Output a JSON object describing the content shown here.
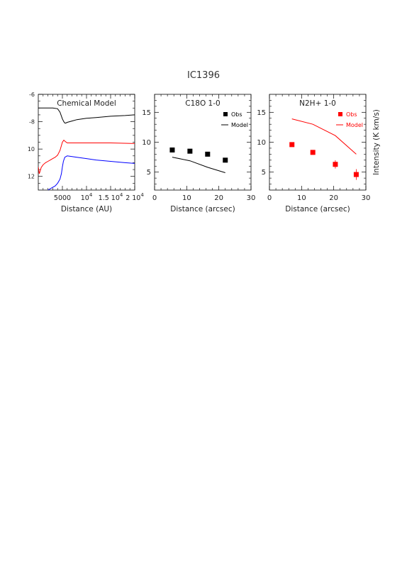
{
  "figure_title": "IC1396",
  "colors": {
    "black": "#000000",
    "red": "#ff0000",
    "blue": "#0000ff"
  },
  "chart_data": [
    {
      "type": "line",
      "title": "Chemical Model",
      "xlabel": "Distance (AU)",
      "ylabel": "",
      "xlim": [
        0,
        20000
      ],
      "ylim": [
        13,
        6
      ],
      "y_inverted": true,
      "y_ticks": [
        {
          "value": 6,
          "label": "-6"
        },
        {
          "value": 8,
          "label": "-8"
        },
        {
          "value": 10,
          "label": "10"
        },
        {
          "value": 12,
          "label": "12"
        }
      ],
      "x_ticks": [
        {
          "value": 5000,
          "label": "5000",
          "sup": ""
        },
        {
          "value": 10000,
          "label": "10",
          "sup": "4"
        },
        {
          "value": 15000,
          "label": "1.5 10",
          "sup": "4"
        },
        {
          "value": 20000,
          "label": "2 10",
          "sup": "4"
        }
      ],
      "series": [
        {
          "color": "#000000",
          "x": [
            0,
            1000,
            2000,
            3000,
            4000,
            4500,
            5000,
            5300,
            5500,
            5700,
            6000,
            7000,
            8000,
            10000,
            12000,
            15000,
            18000,
            20000
          ],
          "y": [
            7.0,
            7.0,
            7.0,
            7.0,
            7.05,
            7.3,
            7.8,
            8.0,
            8.1,
            8.1,
            8.05,
            7.95,
            7.85,
            7.75,
            7.7,
            7.6,
            7.55,
            7.5
          ]
        },
        {
          "color": "#ff0000",
          "x": [
            0,
            200,
            400,
            600,
            1000,
            1500,
            2000,
            2500,
            3000,
            3500,
            4000,
            4500,
            5000,
            5300,
            5600,
            6000,
            7000,
            8000,
            10000,
            15000,
            20000
          ],
          "y": [
            11.3,
            11.8,
            11.6,
            11.35,
            11.15,
            11.0,
            10.9,
            10.8,
            10.7,
            10.6,
            10.45,
            10.1,
            9.5,
            9.35,
            9.45,
            9.55,
            9.55,
            9.55,
            9.55,
            9.55,
            9.6
          ]
        },
        {
          "color": "#0000ff",
          "x": [
            2000,
            2500,
            3000,
            3500,
            4000,
            4500,
            4800,
            5000,
            5200,
            5500,
            6000,
            7000,
            8000,
            10000,
            12000,
            15000,
            18000,
            20000
          ],
          "y": [
            13.0,
            12.9,
            12.8,
            12.7,
            12.5,
            12.2,
            11.8,
            11.3,
            10.9,
            10.6,
            10.5,
            10.55,
            10.6,
            10.7,
            10.8,
            10.9,
            11.0,
            11.05
          ]
        }
      ]
    },
    {
      "type": "scatter",
      "title": "C18O 1-0",
      "xlabel": "Distance (arcsec)",
      "ylabel": "",
      "xlim": [
        0,
        30
      ],
      "ylim": [
        2,
        18
      ],
      "x_ticks": [
        0,
        10,
        20,
        30
      ],
      "y_ticks": [
        5,
        10,
        15
      ],
      "legend": {
        "position": "top-right",
        "obs_label": "Obs",
        "model_label": "Model"
      },
      "series": [
        {
          "name": "Obs",
          "color": "#000000",
          "x": [
            5.5,
            11,
            16.5,
            22
          ],
          "y": [
            8.7,
            8.5,
            8.0,
            7.0
          ],
          "err": [
            0.2,
            0.2,
            0.2,
            0.3
          ]
        },
        {
          "name": "Model",
          "color": "#000000",
          "x": [
            5.5,
            11,
            16.5,
            22
          ],
          "y": [
            7.5,
            6.9,
            5.8,
            4.9
          ]
        }
      ]
    },
    {
      "type": "scatter",
      "title": "N2H+ 1-0",
      "xlabel": "Distance (arcsec)",
      "ylabel": "Intensity (K km/s)",
      "xlim": [
        0,
        30
      ],
      "ylim": [
        2,
        18
      ],
      "x_ticks": [
        0,
        10,
        20,
        30
      ],
      "y_ticks": [
        5,
        10,
        15
      ],
      "legend": {
        "position": "top-right",
        "obs_label": "Obs",
        "model_label": "Model"
      },
      "series": [
        {
          "name": "Obs",
          "color": "#ff0000",
          "x": [
            7,
            13.5,
            20.5,
            27
          ],
          "y": [
            9.6,
            8.3,
            6.3,
            4.6
          ],
          "err": [
            0.3,
            0.4,
            0.7,
            0.9
          ]
        },
        {
          "name": "Model",
          "color": "#ff0000",
          "x": [
            7,
            13.5,
            20.5,
            27
          ],
          "y": [
            13.9,
            13.0,
            11.1,
            8.0
          ]
        }
      ]
    }
  ]
}
